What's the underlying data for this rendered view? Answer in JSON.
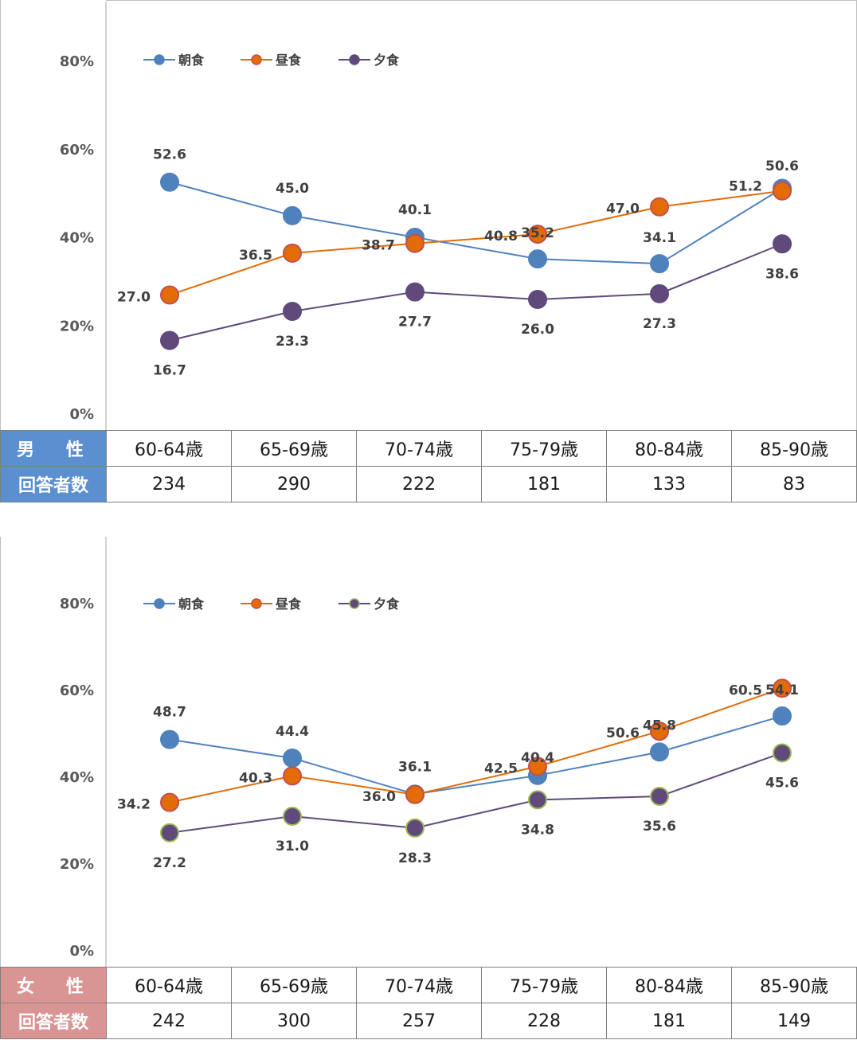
{
  "chart_data": [
    {
      "type": "line",
      "ylim": [
        0,
        90
      ],
      "yticks": [
        "0%",
        "20%",
        "40%",
        "60%",
        "80%"
      ],
      "legend_position": "top-left",
      "categories": [
        "60-64歳",
        "65-69歳",
        "70-74歳",
        "75-79歳",
        "80-84歳",
        "85-90歳"
      ],
      "series": [
        {
          "name": "朝食",
          "color": "#4f81bd",
          "values": [
            52.6,
            45.0,
            40.1,
            35.2,
            34.1,
            51.2
          ]
        },
        {
          "name": "昼食",
          "color": "#e36c09",
          "values": [
            27.0,
            36.5,
            38.7,
            40.8,
            47.0,
            50.6
          ]
        },
        {
          "name": "夕食",
          "color": "#604a7b",
          "values": [
            16.7,
            23.3,
            27.7,
            26.0,
            27.3,
            38.6
          ]
        }
      ],
      "table": {
        "header_label": "男 性",
        "count_label": "回答者数",
        "counts": [
          "234",
          "290",
          "222",
          "181",
          "133",
          "83"
        ]
      }
    },
    {
      "type": "line",
      "ylim": [
        0,
        90
      ],
      "yticks": [
        "0%",
        "20%",
        "40%",
        "60%",
        "80%"
      ],
      "legend_position": "top-left",
      "categories": [
        "60-64歳",
        "65-69歳",
        "70-74歳",
        "75-79歳",
        "80-84歳",
        "85-90歳"
      ],
      "series": [
        {
          "name": "朝食",
          "color": "#4f81bd",
          "values": [
            48.7,
            44.4,
            36.1,
            40.4,
            45.8,
            54.1
          ]
        },
        {
          "name": "昼食",
          "color": "#e36c09",
          "values": [
            34.2,
            40.3,
            36.0,
            42.5,
            50.6,
            60.5
          ]
        },
        {
          "name": "夕食",
          "color": "#604a7b",
          "values": [
            27.2,
            31.0,
            28.3,
            34.8,
            35.6,
            45.6
          ]
        }
      ],
      "table": {
        "header_label": "女 性",
        "count_label": "回答者数",
        "counts": [
          "242",
          "300",
          "257",
          "228",
          "181",
          "149"
        ]
      }
    }
  ]
}
